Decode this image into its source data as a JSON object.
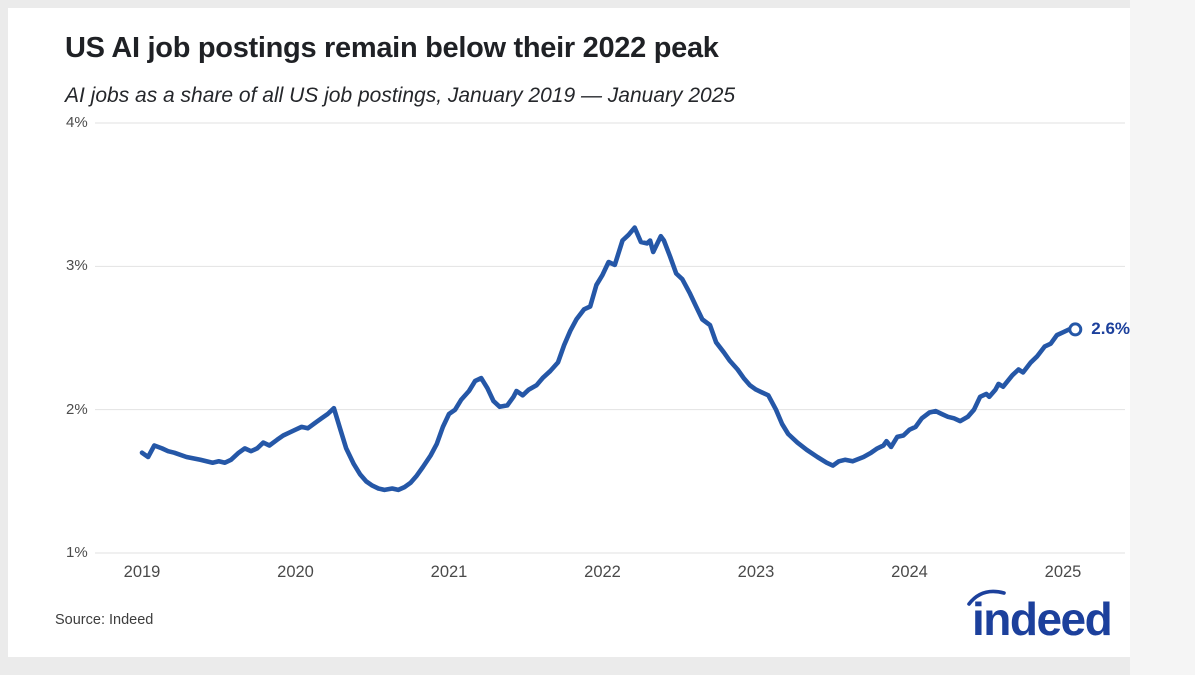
{
  "page": {
    "title": "US AI job postings remain below their 2022 peak",
    "subtitle": "AI jobs as a share of all US job postings, January 2019 — January 2025",
    "source": "Source: Indeed",
    "logo_text": "indeed"
  },
  "colors": {
    "line": "#2557a7",
    "annotation": "#1c409c",
    "logo": "#1c409c",
    "grid": "#e2e2e2",
    "axis_text": "#4a4a4a",
    "title_text": "#1f2125",
    "card_background": "#ffffff",
    "page_background": "#ebebeb"
  },
  "chart_data": {
    "type": "line",
    "title": "US AI job postings remain below their 2022 peak",
    "subtitle": "AI jobs as a share of all US job postings, January 2019 — January 2025",
    "xlabel": "",
    "ylabel": "",
    "grid": "horizontal",
    "legend": "none",
    "ylim": [
      1,
      4
    ],
    "xlim": [
      2018.92,
      2025.45
    ],
    "yticks": [
      {
        "value": 1,
        "label": "1%"
      },
      {
        "value": 2,
        "label": "2%"
      },
      {
        "value": 3,
        "label": "3%"
      },
      {
        "value": 4,
        "label": "4%"
      }
    ],
    "xticks": [
      {
        "value": 2019,
        "label": "2019"
      },
      {
        "value": 2020,
        "label": "2020"
      },
      {
        "value": 2021,
        "label": "2021"
      },
      {
        "value": 2022,
        "label": "2022"
      },
      {
        "value": 2023,
        "label": "2023"
      },
      {
        "value": 2024,
        "label": "2024"
      },
      {
        "value": 2025,
        "label": "2025"
      }
    ],
    "end_annotation": {
      "label": "2.6%",
      "x": 2025.08,
      "y": 2.56,
      "marker": "open-circle"
    },
    "series": [
      {
        "name": "AI jobs as a share of all US job postings",
        "color": "#2557a7",
        "points": [
          [
            2019.0,
            1.7
          ],
          [
            2019.04,
            1.67
          ],
          [
            2019.08,
            1.75
          ],
          [
            2019.13,
            1.73
          ],
          [
            2019.17,
            1.71
          ],
          [
            2019.21,
            1.7
          ],
          [
            2019.29,
            1.67
          ],
          [
            2019.38,
            1.65
          ],
          [
            2019.46,
            1.63
          ],
          [
            2019.5,
            1.64
          ],
          [
            2019.54,
            1.63
          ],
          [
            2019.58,
            1.65
          ],
          [
            2019.63,
            1.7
          ],
          [
            2019.67,
            1.73
          ],
          [
            2019.71,
            1.71
          ],
          [
            2019.75,
            1.73
          ],
          [
            2019.79,
            1.77
          ],
          [
            2019.83,
            1.75
          ],
          [
            2019.88,
            1.79
          ],
          [
            2019.92,
            1.82
          ],
          [
            2019.96,
            1.84
          ],
          [
            2020.0,
            1.86
          ],
          [
            2020.04,
            1.88
          ],
          [
            2020.08,
            1.87
          ],
          [
            2020.13,
            1.91
          ],
          [
            2020.17,
            1.94
          ],
          [
            2020.21,
            1.97
          ],
          [
            2020.25,
            2.01
          ],
          [
            2020.29,
            1.87
          ],
          [
            2020.33,
            1.73
          ],
          [
            2020.38,
            1.62
          ],
          [
            2020.42,
            1.55
          ],
          [
            2020.46,
            1.5
          ],
          [
            2020.5,
            1.47
          ],
          [
            2020.54,
            1.45
          ],
          [
            2020.58,
            1.44
          ],
          [
            2020.63,
            1.45
          ],
          [
            2020.67,
            1.44
          ],
          [
            2020.71,
            1.46
          ],
          [
            2020.75,
            1.49
          ],
          [
            2020.79,
            1.54
          ],
          [
            2020.83,
            1.6
          ],
          [
            2020.88,
            1.68
          ],
          [
            2020.92,
            1.76
          ],
          [
            2020.96,
            1.88
          ],
          [
            2021.0,
            1.97
          ],
          [
            2021.04,
            2.0
          ],
          [
            2021.08,
            2.07
          ],
          [
            2021.13,
            2.13
          ],
          [
            2021.17,
            2.2
          ],
          [
            2021.21,
            2.22
          ],
          [
            2021.25,
            2.15
          ],
          [
            2021.29,
            2.06
          ],
          [
            2021.33,
            2.02
          ],
          [
            2021.38,
            2.03
          ],
          [
            2021.42,
            2.09
          ],
          [
            2021.44,
            2.13
          ],
          [
            2021.48,
            2.1
          ],
          [
            2021.52,
            2.14
          ],
          [
            2021.57,
            2.17
          ],
          [
            2021.61,
            2.22
          ],
          [
            2021.66,
            2.27
          ],
          [
            2021.71,
            2.33
          ],
          [
            2021.75,
            2.45
          ],
          [
            2021.79,
            2.55
          ],
          [
            2021.83,
            2.63
          ],
          [
            2021.88,
            2.7
          ],
          [
            2021.92,
            2.72
          ],
          [
            2021.96,
            2.87
          ],
          [
            2022.0,
            2.94
          ],
          [
            2022.04,
            3.03
          ],
          [
            2022.08,
            3.01
          ],
          [
            2022.13,
            3.18
          ],
          [
            2022.17,
            3.22
          ],
          [
            2022.21,
            3.27
          ],
          [
            2022.25,
            3.17
          ],
          [
            2022.29,
            3.16
          ],
          [
            2022.31,
            3.18
          ],
          [
            2022.33,
            3.1
          ],
          [
            2022.38,
            3.21
          ],
          [
            2022.4,
            3.18
          ],
          [
            2022.44,
            3.07
          ],
          [
            2022.48,
            2.95
          ],
          [
            2022.52,
            2.91
          ],
          [
            2022.57,
            2.81
          ],
          [
            2022.61,
            2.72
          ],
          [
            2022.65,
            2.63
          ],
          [
            2022.7,
            2.59
          ],
          [
            2022.74,
            2.47
          ],
          [
            2022.79,
            2.4
          ],
          [
            2022.83,
            2.34
          ],
          [
            2022.88,
            2.28
          ],
          [
            2022.92,
            2.22
          ],
          [
            2022.96,
            2.17
          ],
          [
            2023.0,
            2.14
          ],
          [
            2023.04,
            2.12
          ],
          [
            2023.08,
            2.1
          ],
          [
            2023.13,
            2.0
          ],
          [
            2023.17,
            1.9
          ],
          [
            2023.21,
            1.83
          ],
          [
            2023.27,
            1.77
          ],
          [
            2023.33,
            1.72
          ],
          [
            2023.4,
            1.67
          ],
          [
            2023.46,
            1.63
          ],
          [
            2023.5,
            1.61
          ],
          [
            2023.54,
            1.64
          ],
          [
            2023.58,
            1.65
          ],
          [
            2023.63,
            1.64
          ],
          [
            2023.7,
            1.67
          ],
          [
            2023.75,
            1.7
          ],
          [
            2023.79,
            1.73
          ],
          [
            2023.83,
            1.75
          ],
          [
            2023.85,
            1.78
          ],
          [
            2023.88,
            1.74
          ],
          [
            2023.92,
            1.81
          ],
          [
            2023.96,
            1.82
          ],
          [
            2024.0,
            1.86
          ],
          [
            2024.04,
            1.88
          ],
          [
            2024.08,
            1.94
          ],
          [
            2024.13,
            1.98
          ],
          [
            2024.17,
            1.99
          ],
          [
            2024.21,
            1.97
          ],
          [
            2024.25,
            1.95
          ],
          [
            2024.29,
            1.94
          ],
          [
            2024.33,
            1.92
          ],
          [
            2024.38,
            1.95
          ],
          [
            2024.42,
            2.0
          ],
          [
            2024.46,
            2.09
          ],
          [
            2024.5,
            2.11
          ],
          [
            2024.52,
            2.09
          ],
          [
            2024.56,
            2.14
          ],
          [
            2024.58,
            2.18
          ],
          [
            2024.61,
            2.16
          ],
          [
            2024.67,
            2.24
          ],
          [
            2024.71,
            2.28
          ],
          [
            2024.74,
            2.26
          ],
          [
            2024.79,
            2.33
          ],
          [
            2024.83,
            2.37
          ],
          [
            2024.88,
            2.44
          ],
          [
            2024.92,
            2.46
          ],
          [
            2024.96,
            2.52
          ],
          [
            2025.0,
            2.54
          ],
          [
            2025.04,
            2.56
          ],
          [
            2025.08,
            2.56
          ]
        ]
      }
    ]
  }
}
